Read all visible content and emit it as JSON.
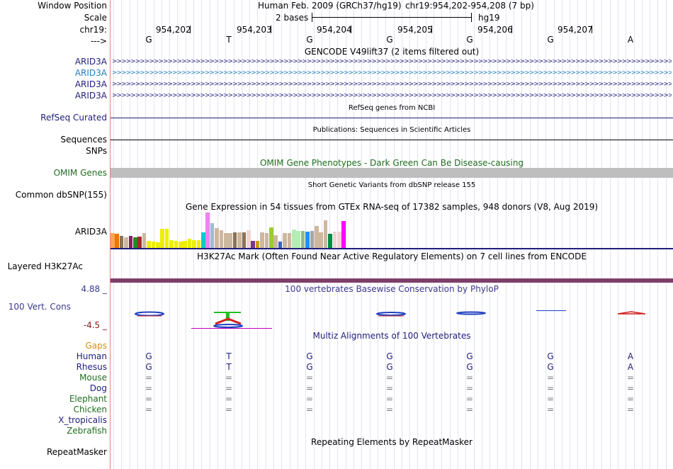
{
  "position": {
    "label_window": "Window Position",
    "label_scale": "Scale",
    "label_chrom": "chr19:",
    "label_strand": "--->",
    "assembly": "Human Feb. 2009 (GRCh37/hg19)",
    "range": "chr19:954,202-954,208 (7 bp)",
    "scale_text": "2 bases",
    "db": "hg19",
    "ticks": [
      "954,202",
      "954,203",
      "954,204",
      "954,205",
      "954,206",
      "954,207"
    ],
    "bases": [
      "G",
      "T",
      "G",
      "G",
      "G",
      "G",
      "A"
    ]
  },
  "gencode": {
    "title": "GENCODE V49lift37 (2 items filtered out)",
    "genes": [
      "ARID3A",
      "ARID3A",
      "ARID3A",
      "ARID3A"
    ],
    "strand_glyphs": ">>>>>>>>>>>>>>>>>>>>>>>>>>>>>>>>>>>>>>>>>>>>>>>>>>>>>>>>>>>>>>>>>>>>>>>>>>>>>>>>>>>>>>>>>>>>>>>>>>>>>>>>>>>>>>>>>>>>>>>>>>>>>>>>>"
  },
  "refseq": {
    "title": "RefSeq genes from NCBI",
    "label": "RefSeq Curated"
  },
  "publications": {
    "title": "Publications: Sequences in Scientific Articles",
    "label": "Sequences"
  },
  "snps": {
    "label": "SNPs"
  },
  "omim": {
    "title": "OMIM Gene Phenotypes - Dark Green Can Be Disease-causing",
    "label": "OMIM Genes"
  },
  "dbsnp": {
    "title": "Short Genetic Variants from dbSNP release 155",
    "label": "Common dbSNP(155)"
  },
  "gtex": {
    "title": "Gene Expression in 54 tissues from GTEx RNA-seq of 17382 samples, 948 donors (V8, Aug 2019)",
    "label": "ARID3A",
    "bars": [
      {
        "v": 0.42,
        "c": "#ffa54f"
      },
      {
        "v": 0.4,
        "c": "#ee7600"
      },
      {
        "v": 0.34,
        "c": "#8b7355"
      },
      {
        "v": 0.3,
        "c": "#cdb79e"
      },
      {
        "v": 0.34,
        "c": "#8b1c62"
      },
      {
        "v": 0.3,
        "c": "#228b22"
      },
      {
        "v": 0.32,
        "c": "#a52a2a"
      },
      {
        "v": 0.42,
        "c": "#cdb79e"
      },
      {
        "v": 0.2,
        "c": "#eeee00"
      },
      {
        "v": 0.18,
        "c": "#eeee00"
      },
      {
        "v": 0.16,
        "c": "#eeee00"
      },
      {
        "v": 0.54,
        "c": "#eeee00"
      },
      {
        "v": 0.54,
        "c": "#eeee00"
      },
      {
        "v": 0.22,
        "c": "#eeee00"
      },
      {
        "v": 0.2,
        "c": "#eeee00"
      },
      {
        "v": 0.18,
        "c": "#eeee00"
      },
      {
        "v": 0.2,
        "c": "#eeee00"
      },
      {
        "v": 0.26,
        "c": "#eeee00"
      },
      {
        "v": 0.22,
        "c": "#eeee00"
      },
      {
        "v": 0.22,
        "c": "#eeee00"
      },
      {
        "v": 0.44,
        "c": "#00cdcd"
      },
      {
        "v": 1.0,
        "c": "#ee82ee"
      },
      {
        "v": 0.7,
        "c": "#9ac0cd"
      },
      {
        "v": 0.56,
        "c": "#cdb79e"
      },
      {
        "v": 0.5,
        "c": "#cdb79e"
      },
      {
        "v": 0.42,
        "c": "#cdb79e"
      },
      {
        "v": 0.42,
        "c": "#cdb79e"
      },
      {
        "v": 0.44,
        "c": "#8b7355"
      },
      {
        "v": 0.44,
        "c": "#cdb79e"
      },
      {
        "v": 0.44,
        "c": "#8b7355"
      },
      {
        "v": 0.5,
        "c": "#eed5d2"
      },
      {
        "v": 0.2,
        "c": "#7a378b"
      },
      {
        "v": 0.2,
        "c": "#cd9b1d"
      },
      {
        "v": 0.44,
        "c": "#cdb79e"
      },
      {
        "v": 0.42,
        "c": "#cdb79e"
      },
      {
        "v": 0.58,
        "c": "#9acd32"
      },
      {
        "v": 0.36,
        "c": "#cdb79e"
      },
      {
        "v": 0.18,
        "c": "#3a5fcd"
      },
      {
        "v": 0.42,
        "c": "#cdb79e"
      },
      {
        "v": 0.42,
        "c": "#cdb79e"
      },
      {
        "v": 0.52,
        "c": "#b4eeb4"
      },
      {
        "v": 0.48,
        "c": "#b4eeb4"
      },
      {
        "v": 0.48,
        "c": "#8fbc8f"
      },
      {
        "v": 0.46,
        "c": "#1e90ff"
      },
      {
        "v": 0.48,
        "c": "#a6a6a6"
      },
      {
        "v": 0.62,
        "c": "#cdb79e"
      },
      {
        "v": 0.44,
        "c": "#cdb79e"
      },
      {
        "v": 0.78,
        "c": "#cdb79e"
      },
      {
        "v": 0.4,
        "c": "#008b45"
      },
      {
        "v": 0.46,
        "c": "#eed5d2"
      },
      {
        "v": 0.46,
        "c": "#eed5d2"
      },
      {
        "v": 0.76,
        "c": "#ff00ff"
      }
    ]
  },
  "h3k27ac": {
    "title": "H3K27Ac Mark (Often Found Near Active Regulatory Elements) on 7 cell lines from ENCODE",
    "label": "Layered H3K27Ac"
  },
  "conservation": {
    "title": "100 vertebrates Basewise Conservation by PhyloP",
    "label": "100 Vert. Cons",
    "max": "4.88 _",
    "min": "-4.5 _"
  },
  "multiz": {
    "title": "Multiz Alignments of 100 Vertebrates",
    "species": [
      {
        "name": "Gaps",
        "color": "#d48d0e",
        "bases": [
          "",
          "",
          "",
          "",
          "",
          "",
          ""
        ]
      },
      {
        "name": "Human",
        "color": "#1e1e7a",
        "bases": [
          "G",
          "T",
          "G",
          "G",
          "G",
          "G",
          "A"
        ]
      },
      {
        "name": "Rhesus",
        "color": "#1e1e7a",
        "bases": [
          "G",
          "T",
          "G",
          "G",
          "G",
          "G",
          "A"
        ]
      },
      {
        "name": "Mouse",
        "color": "#1e6e1e",
        "bases": [
          "=",
          "=",
          "=",
          "=",
          "=",
          "=",
          "="
        ]
      },
      {
        "name": "Dog",
        "color": "#1e1e7a",
        "bases": [
          "=",
          "=",
          "=",
          "=",
          "=",
          "=",
          "="
        ]
      },
      {
        "name": "Elephant",
        "color": "#1e6e1e",
        "bases": [
          "=",
          "=",
          "=",
          "=",
          "=",
          "=",
          "="
        ]
      },
      {
        "name": "Chicken",
        "color": "#1e6e1e",
        "bases": [
          "=",
          "=",
          "=",
          "=",
          "=",
          "=",
          "="
        ]
      },
      {
        "name": "X_tropicalis",
        "color": "#1e1e7a",
        "bases": [
          "",
          "",
          "",
          "",
          "",
          "",
          ""
        ]
      },
      {
        "name": "Zebrafish",
        "color": "#1e6e1e",
        "bases": [
          "",
          "",
          "",
          "",
          "",
          "",
          ""
        ]
      }
    ]
  },
  "repeatmasker": {
    "title": "Repeating Elements by RepeatMasker",
    "label": "RepeatMasker"
  },
  "colors": {
    "navy": "#1e1e7a",
    "omim_green": "#1e6e1e",
    "gencode_blue": "#2080c0",
    "divider": "#e98080",
    "h3k27ac": "#7d3f69",
    "phylop": "#3a3a8f"
  }
}
